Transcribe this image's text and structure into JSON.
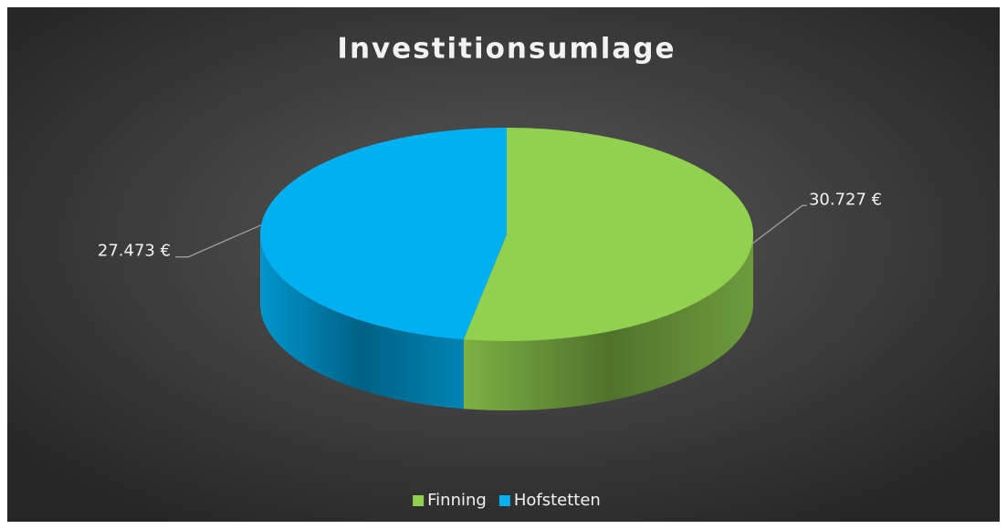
{
  "chart_data": {
    "type": "pie",
    "title": "Investitionsumlage",
    "categories": [
      "Finning",
      "Hofstetten"
    ],
    "values": [
      30727,
      27473
    ],
    "value_labels": [
      "30.727 €",
      "27.473 €"
    ],
    "colors": [
      "#92d050",
      "#00b0f0"
    ],
    "legend": "bottom"
  }
}
